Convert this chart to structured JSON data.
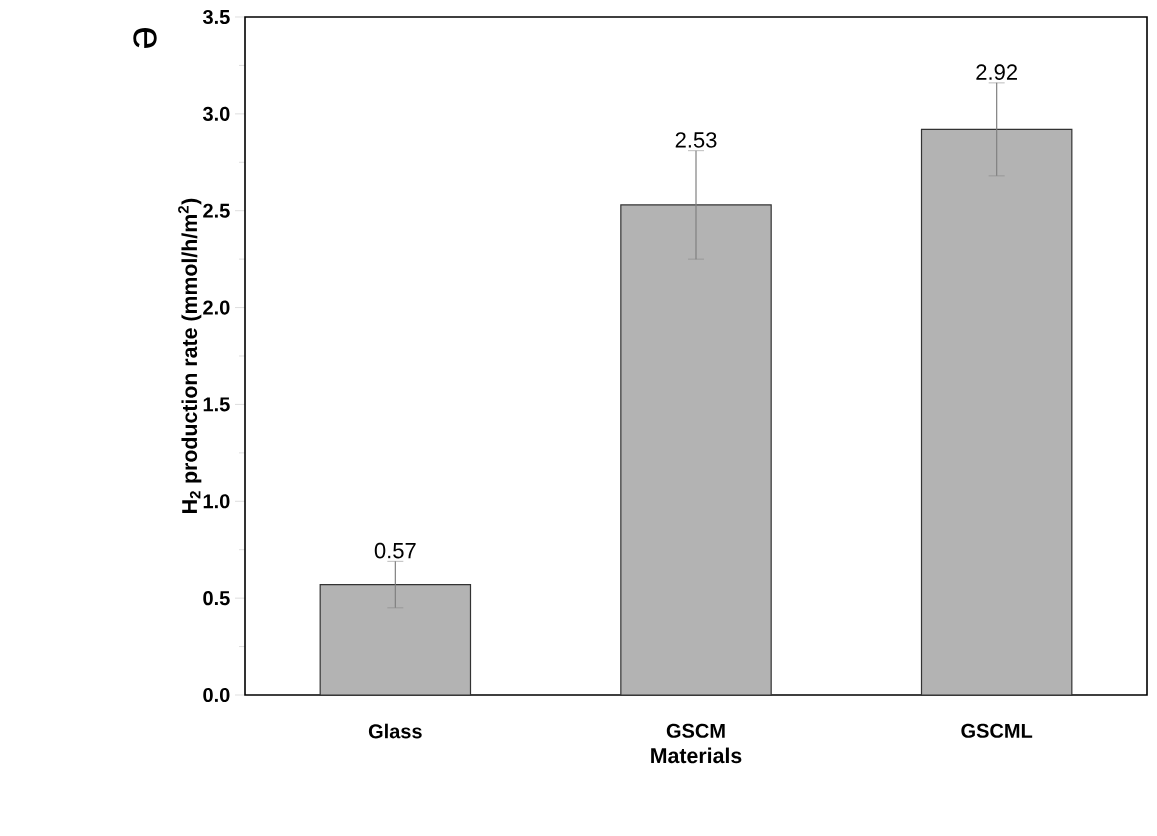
{
  "chart_data": {
    "type": "bar",
    "categories": [
      "Glass",
      "GSCM",
      "GSCML"
    ],
    "values": [
      0.57,
      2.53,
      2.92
    ],
    "errors": [
      0.12,
      0.28,
      0.24
    ],
    "value_labels": [
      "0.57",
      "2.53",
      "2.92"
    ],
    "color": "#b3b3b3",
    "xlabel": "Materials",
    "ylabel": "H$_{2}$ production rate (mmol/h/m$^{2}$)",
    "ylim": [
      0,
      3.5
    ],
    "yticks": [
      {
        "value": 0,
        "label": "0.0"
      },
      {
        "value": 0.5,
        "label": "0.5"
      },
      {
        "value": 1,
        "label": "1.0"
      },
      {
        "value": 1.5,
        "label": "1.5"
      },
      {
        "value": 2,
        "label": "2.0"
      },
      {
        "value": 2.5,
        "label": "2.5"
      },
      {
        "value": 3,
        "label": "3.0"
      },
      {
        "value": 3.5,
        "label": "3.5"
      }
    ],
    "annotations": [
      "e"
    ]
  }
}
